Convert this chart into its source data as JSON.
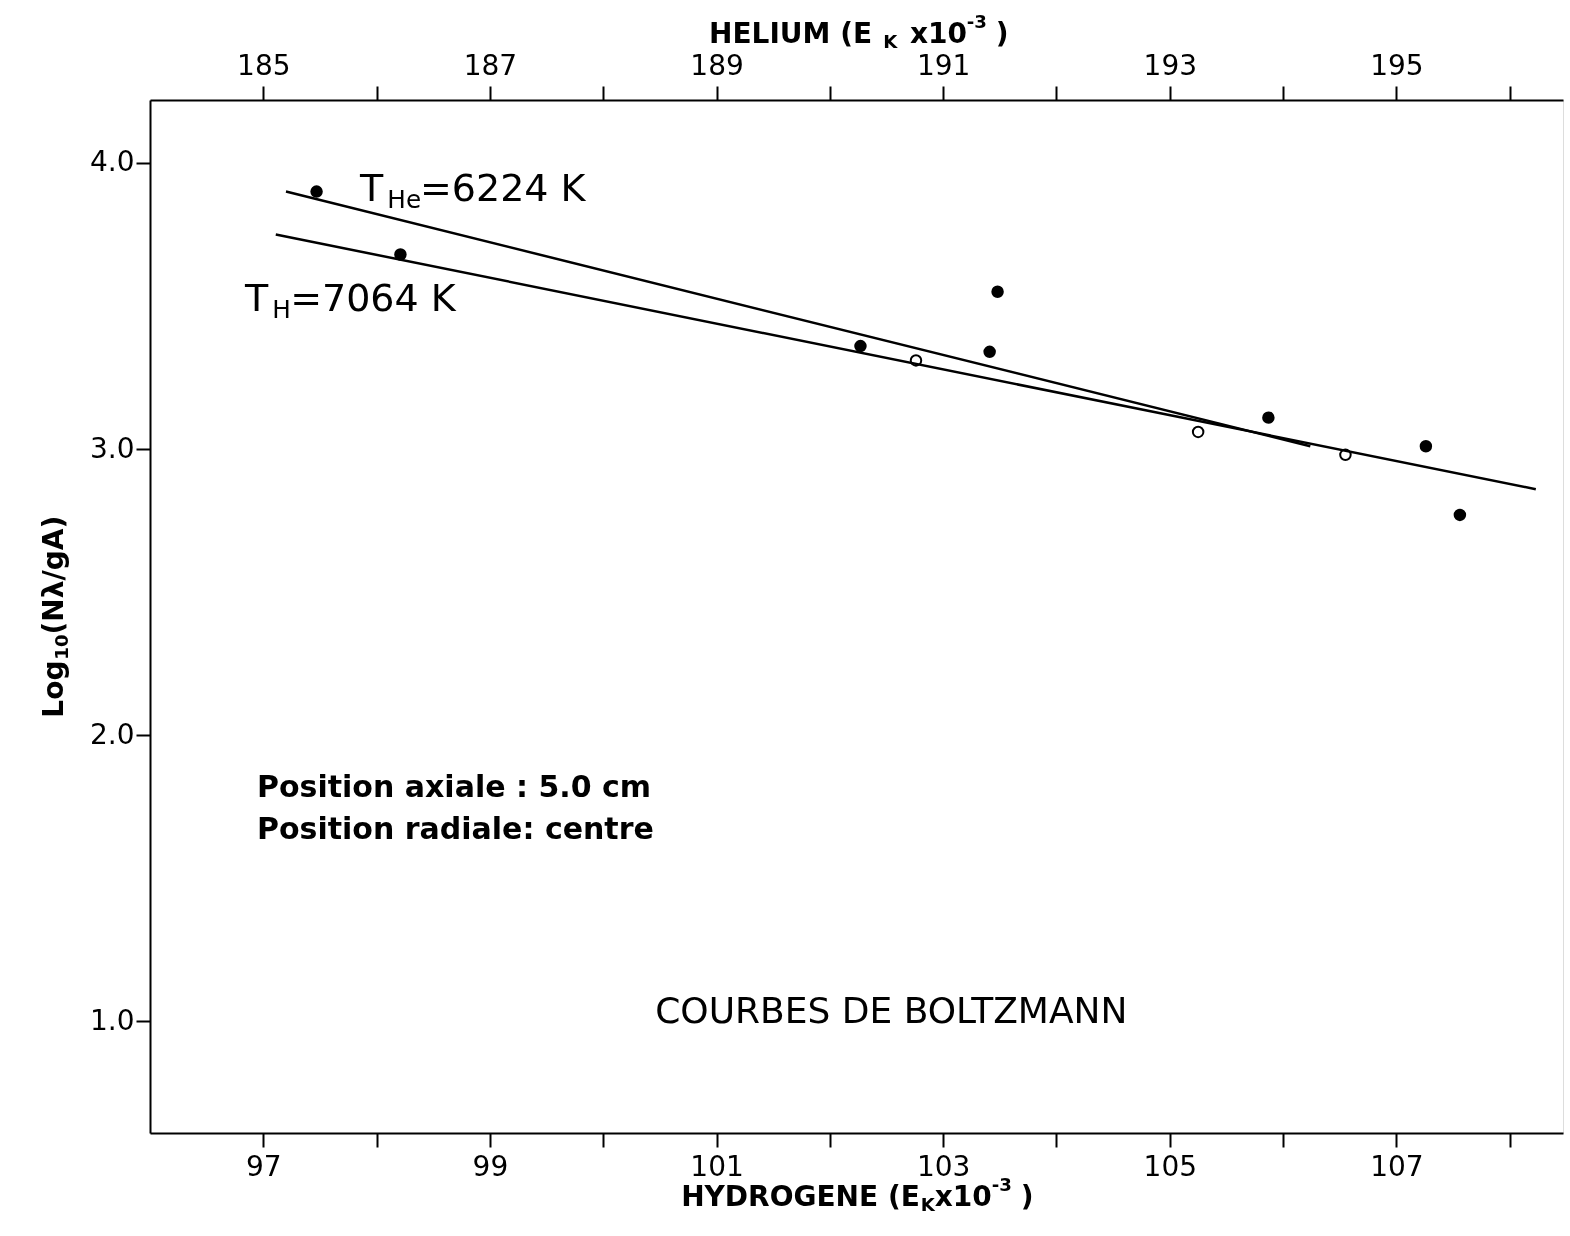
{
  "chart_data": {
    "type": "scatter",
    "xlabel": "HYDROGENE (E$_{K}$x10$^{-3}$)",
    "x2label": "HELIUM (E$_{K}$ x10$^{-3}$)",
    "ylabel": "Log$_{10}$(Nλ/gA)",
    "xlim": [
      96,
      108.47
    ],
    "xticks": [
      97,
      {
        "value": 98,
        "label": null
      },
      99,
      {
        "value": 100,
        "label": null
      },
      101,
      {
        "value": 102,
        "label": null
      },
      103,
      {
        "value": 104,
        "label": null
      },
      105,
      {
        "value": 106,
        "label": null
      },
      107,
      {
        "value": 108,
        "label": null
      }
    ],
    "x2lim": [
      184,
      196.47
    ],
    "x2ticks": [
      185,
      {
        "value": 186,
        "label": null
      },
      187,
      {
        "value": 188,
        "label": null
      },
      189,
      {
        "value": 190,
        "label": null
      },
      191,
      {
        "value": 192,
        "label": null
      },
      193,
      {
        "value": 194,
        "label": null
      },
      195,
      {
        "value": 196,
        "label": null
      }
    ],
    "ylim": [
      0.61,
      4.22
    ],
    "yticks": [
      {
        "value": 1,
        "label": "1.0"
      },
      {
        "value": 2,
        "label": "2.0"
      },
      {
        "value": 3,
        "label": "3.0"
      },
      {
        "value": 4,
        "label": "4.0"
      }
    ],
    "grid": false,
    "marker": "circle",
    "series": [
      {
        "axis": "x2",
        "color": "#000000",
        "x": [
          185.47,
          186.21,
          190.27,
          191.41,
          191.48,
          193.87,
          195.26,
          195.56
        ],
        "values": [
          3.9,
          3.68,
          3.36,
          3.34,
          3.55,
          3.11,
          3.01,
          2.77
        ]
      },
      {
        "color": "#ffffff",
        "x": [
          102.76,
          105.25,
          106.55
        ],
        "values": [
          3.31,
          3.06,
          2.98
        ]
      },
      {
        "type": "line",
        "axis": "x2",
        "color": "#000000",
        "line_style": "solid",
        "marker": "none",
        "x": [
          185.2,
          194.24
        ],
        "values": [
          3.9,
          3.01
        ]
      },
      {
        "type": "line",
        "color": "#000000",
        "line_style": "solid",
        "marker": "none",
        "x": [
          97.11,
          108.23
        ],
        "values": [
          3.75,
          2.86
        ]
      }
    ],
    "annotations": [
      "T$_{He}$=6224 K",
      "T$_{H}$=7064 K",
      "Position axiale : 5.0 cm",
      "Position radiale: centre",
      "COURBES DE BOLTZMANN"
    ]
  }
}
